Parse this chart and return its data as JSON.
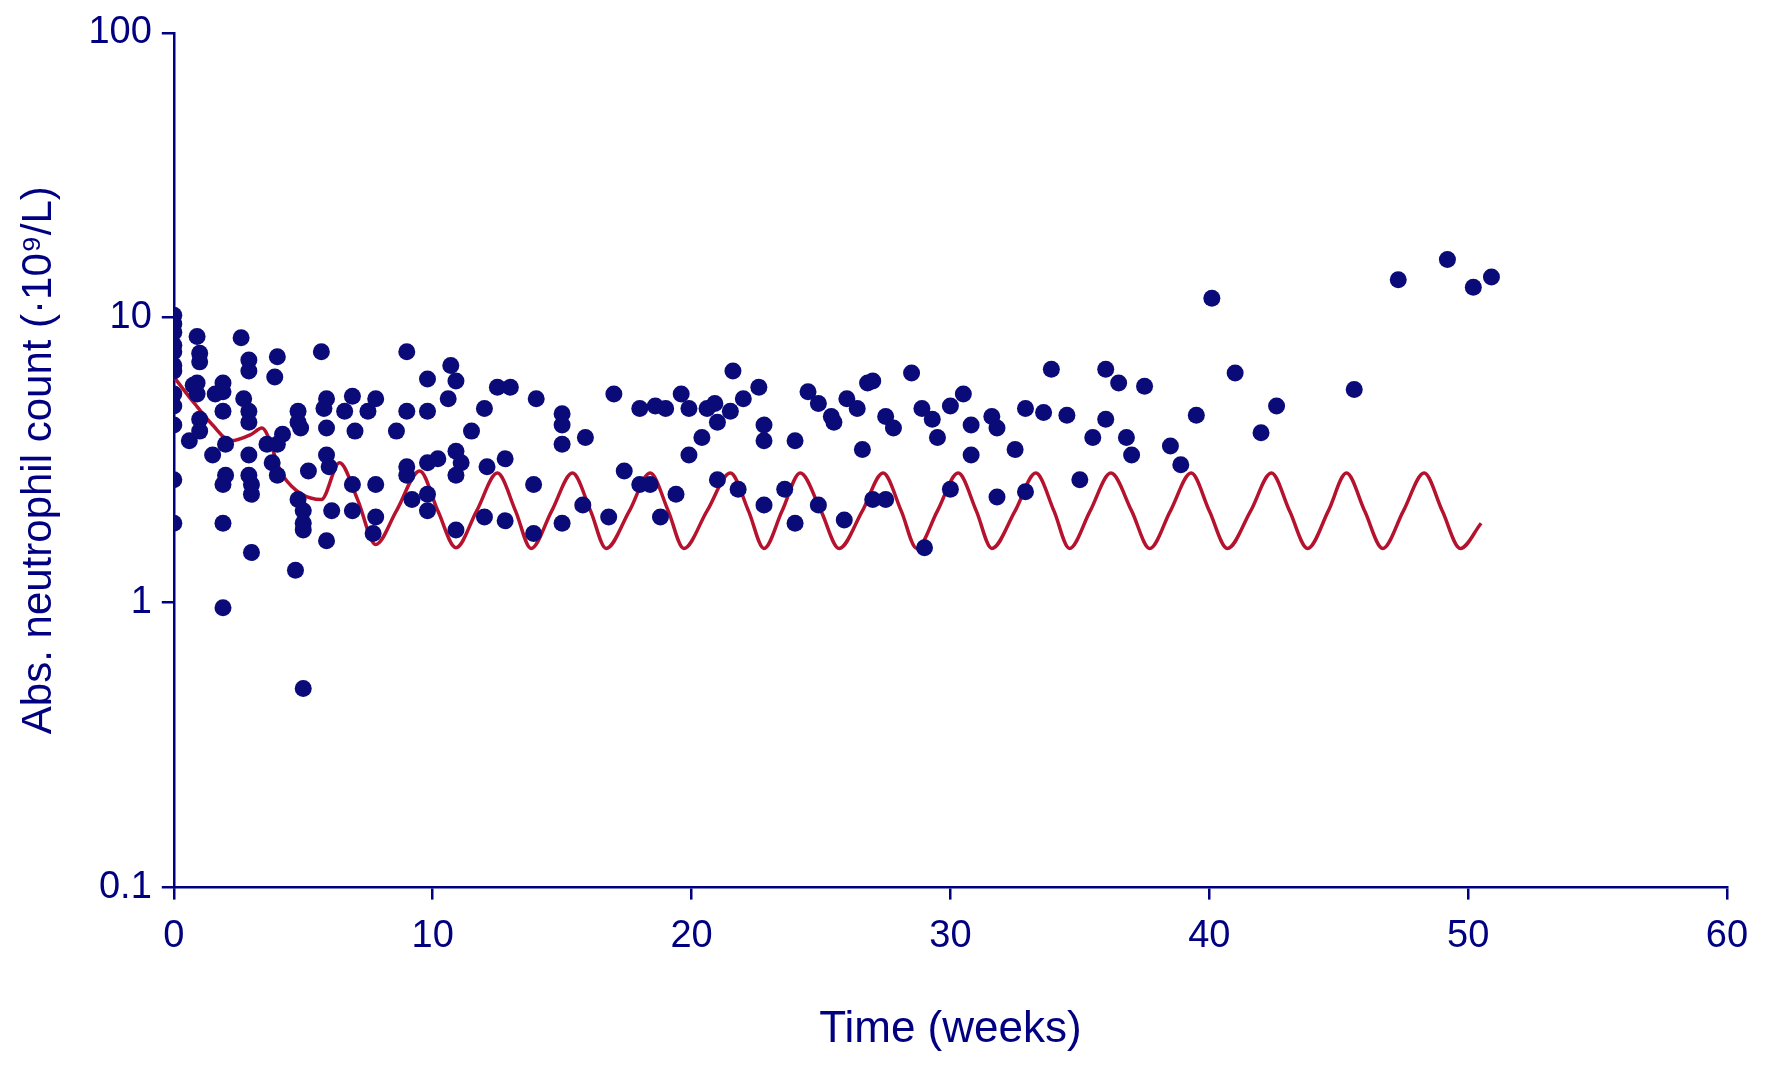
{
  "chart_data": {
    "type": "scatter",
    "xlabel": "Time (weeks)",
    "ylabel": "Abs. neutrophil count (·10⁹/L)",
    "log": "y",
    "grid": false,
    "legend": false,
    "marker": "circle",
    "xlim": [
      0,
      60
    ],
    "xticks": [
      0,
      10,
      20,
      30,
      40,
      50,
      60
    ],
    "ylim": [
      0.1,
      100
    ],
    "yticks": [
      0.1,
      1,
      10,
      100
    ],
    "series": [
      {
        "color": "#0a0a78",
        "x": [
          0,
          0,
          0,
          0,
          0,
          0,
          0,
          0,
          0,
          0,
          0,
          0,
          0.6,
          0.75,
          0.9,
          1.0,
          1.0,
          0.9,
          0.9,
          1.0,
          1.0,
          1.5,
          1.6,
          1.9,
          1.9,
          1.9,
          2.0,
          2.0,
          1.9,
          1.9,
          1.9,
          2.6,
          2.9,
          2.9,
          2.7,
          2.9,
          2.9,
          2.9,
          2.9,
          3.0,
          3.0,
          3.0,
          3.6,
          3.8,
          4.0,
          3.9,
          4.2,
          4.0,
          4.0,
          4.8,
          4.8,
          4.8,
          5.0,
          5.0,
          5.0,
          4.7,
          5.0,
          5.2,
          4.9,
          5.7,
          5.9,
          5.8,
          5.9,
          5.9,
          6.0,
          6.1,
          5.9,
          6.6,
          6.9,
          7.0,
          6.9,
          6.9,
          7.5,
          7.8,
          7.8,
          7.8,
          7.7,
          8.6,
          9.0,
          9.0,
          9.0,
          9.0,
          9.2,
          9.8,
          9.8,
          9.8,
          9.8,
          9.8,
          10.2,
          10.6,
          10.7,
          10.9,
          10.9,
          10.9,
          10.9,
          11.1,
          11.5,
          12.0,
          12.1,
          12.0,
          12.5,
          13.0,
          12.8,
          12.8,
          14.0,
          13.9,
          13.9,
          15.0,
          15.0,
          15.0,
          15.0,
          15.9,
          15.8,
          17.0,
          16.8,
          17.4,
          18.0,
          18.0,
          18.4,
          18.6,
          19.0,
          18.8,
          19.4,
          19.6,
          19.9,
          19.9,
          20.4,
          20.6,
          20.9,
          21.0,
          21.0,
          21.5,
          21.6,
          21.8,
          22.0,
          22.6,
          22.8,
          22.8,
          22.8,
          23.6,
          24.0,
          24.0,
          24.5,
          24.9,
          24.9,
          25.4,
          25.5,
          25.9,
          26.0,
          26.4,
          26.6,
          26.8,
          27.0,
          27.0,
          27.5,
          27.5,
          27.8,
          28.5,
          28.9,
          29.0,
          29.3,
          29.5,
          30.0,
          30.0,
          30.5,
          30.8,
          30.8,
          31.6,
          31.8,
          31.8,
          32.5,
          32.9,
          32.9,
          33.6,
          33.9,
          34.5,
          35.0,
          35.5,
          36.0,
          36.0,
          36.5,
          36.8,
          37.0,
          37.5,
          38.5,
          38.9,
          39.5,
          40.1,
          41.0,
          42.0,
          42.6,
          45.6,
          47.3,
          49.2,
          50.2,
          50.9
        ],
        "values": [
          10.2,
          9.5,
          8.9,
          8,
          7.6,
          6.8,
          6.5,
          5.4,
          4.9,
          4.2,
          2.7,
          1.9,
          3.7,
          5.8,
          8.6,
          7.5,
          7.0,
          5.9,
          5.4,
          4.4,
          4.0,
          3.3,
          5.4,
          5.9,
          5.5,
          4.7,
          3.6,
          2.8,
          2.6,
          1.9,
          0.96,
          8.5,
          7.1,
          6.5,
          5.2,
          4.7,
          4.3,
          3.3,
          2.8,
          2.6,
          2.4,
          1.5,
          3.6,
          3.1,
          7.3,
          6.2,
          3.9,
          3.6,
          2.8,
          4.7,
          4.3,
          2.3,
          2.1,
          1.9,
          1.8,
          1.3,
          0.5,
          2.9,
          4.1,
          7.6,
          5.2,
          4.8,
          4.1,
          3.3,
          3.0,
          2.1,
          1.65,
          4.7,
          5.3,
          4.0,
          2.6,
          2.1,
          4.7,
          5.2,
          2.6,
          2.0,
          1.75,
          4.0,
          7.6,
          4.7,
          3.0,
          2.8,
          2.3,
          4.7,
          6.1,
          3.1,
          2.1,
          2.4,
          3.2,
          5.2,
          6.8,
          6.0,
          3.4,
          2.8,
          1.8,
          3.1,
          4.0,
          4.8,
          3.0,
          2.0,
          5.7,
          5.7,
          3.2,
          1.94,
          5.2,
          2.6,
          1.75,
          4.6,
          4.2,
          3.6,
          1.9,
          3.8,
          2.2,
          5.4,
          2.0,
          2.9,
          4.8,
          2.6,
          2.6,
          4.9,
          4.8,
          2.0,
          2.4,
          5.4,
          4.8,
          3.3,
          3.8,
          4.8,
          5.0,
          4.3,
          2.7,
          4.7,
          6.5,
          2.5,
          5.2,
          5.7,
          4.2,
          3.7,
          2.2,
          2.5,
          3.7,
          1.9,
          5.5,
          5.0,
          2.2,
          4.5,
          4.3,
          1.95,
          5.2,
          4.8,
          3.45,
          5.9,
          6.0,
          2.3,
          2.3,
          4.5,
          4.1,
          6.4,
          4.8,
          1.56,
          4.4,
          3.8,
          2.5,
          4.9,
          5.4,
          3.3,
          4.2,
          4.5,
          4.1,
          2.35,
          3.45,
          4.8,
          2.45,
          4.65,
          6.6,
          4.55,
          2.7,
          3.8,
          6.6,
          4.4,
          5.9,
          3.8,
          3.3,
          5.75,
          3.55,
          3.05,
          4.55,
          11.7,
          6.4,
          3.95,
          4.9,
          5.6,
          13.6,
          16.0,
          12.8,
          13.9
        ]
      },
      {
        "type": "line",
        "color": "#b5122e",
        "marker": "none",
        "line_style": "solid",
        "x": [
          0,
          0.8,
          1.5,
          2.2,
          3.0,
          3.4,
          4.2,
          5.0,
          5.7,
          6.4,
          7.1,
          7.8,
          8.6,
          9.5,
          10.2,
          10.9,
          11.7,
          12.5,
          13.2,
          13.8,
          14.6,
          15.4,
          16.1,
          16.7,
          17.6,
          18.4,
          19.1,
          19.7,
          20.6,
          21.5,
          22.2,
          22.8,
          23.5,
          24.2,
          25.0,
          25.7,
          26.6,
          27.4,
          28.1,
          28.7,
          29.5,
          30.3,
          31.0,
          31.6,
          32.5,
          33.3,
          34.0,
          34.6,
          35.4,
          36.2,
          37.0,
          37.7,
          38.5,
          39.3,
          40.0,
          40.7,
          41.6,
          42.4,
          43.1,
          43.8,
          44.6,
          45.3,
          46.0,
          46.7,
          47.5,
          48.3,
          49.0,
          49.7,
          50.5
        ],
        "values": [
          6.2,
          5.0,
          4.2,
          3.7,
          3.9,
          4.1,
          2.8,
          null,
          2.3,
          3.1,
          2.3,
          1.6,
          2.1,
          2.9,
          2.1,
          1.56,
          2.1,
          2.85,
          2.1,
          1.55,
          2.1,
          2.85,
          2.1,
          1.55,
          2.1,
          2.85,
          2.1,
          1.55,
          2.1,
          2.85,
          2.1,
          1.55,
          2.1,
          2.85,
          2.1,
          1.55,
          2.1,
          2.85,
          2.1,
          1.55,
          2.1,
          2.85,
          2.1,
          1.55,
          2.1,
          2.85,
          2.1,
          1.55,
          2.1,
          2.85,
          2.1,
          1.55,
          2.1,
          2.85,
          2.1,
          1.55,
          2.1,
          2.85,
          2.1,
          1.55,
          2.1,
          2.85,
          2.1,
          1.55,
          2.1,
          2.85,
          2.1,
          1.55,
          1.9
        ]
      }
    ]
  }
}
